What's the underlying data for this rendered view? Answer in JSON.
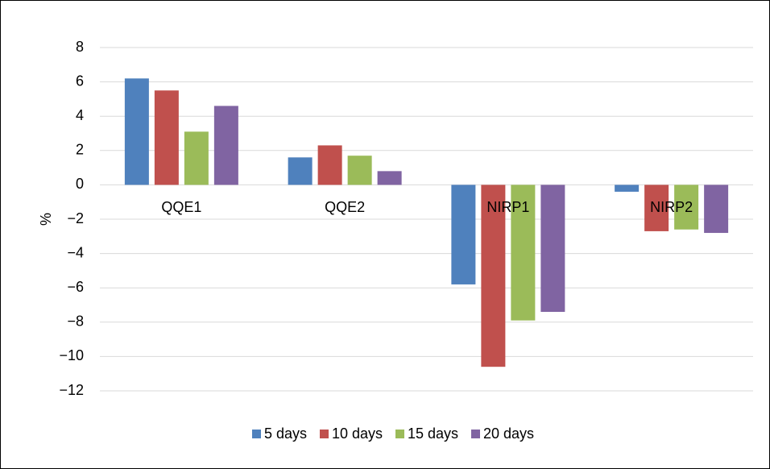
{
  "chart_data": {
    "type": "bar",
    "y_label": "%",
    "categories": [
      "QQE1",
      "QQE2",
      "NIRP1",
      "NIRP2"
    ],
    "series": [
      {
        "name": "5 days",
        "color": "#4f81bd",
        "values": [
          6.2,
          1.6,
          -5.8,
          -0.4
        ]
      },
      {
        "name": "10 days",
        "color": "#c0504d",
        "values": [
          5.5,
          2.3,
          -10.6,
          -2.7
        ]
      },
      {
        "name": "15 days",
        "color": "#9bbb59",
        "values": [
          3.1,
          1.7,
          -7.9,
          -2.6
        ]
      },
      {
        "name": "20 days",
        "color": "#8064a2",
        "values": [
          4.6,
          0.8,
          -7.4,
          -2.8
        ]
      }
    ],
    "ylim": [
      -12,
      8
    ],
    "yticks": [
      8,
      6,
      4,
      2,
      0,
      {
        "value": -2,
        "label": "−2"
      },
      {
        "value": -4,
        "label": "−4"
      },
      {
        "value": -6,
        "label": "−6"
      },
      {
        "value": -8,
        "label": "−8"
      },
      {
        "value": -10,
        "label": "−10"
      },
      {
        "value": -12,
        "label": "−12"
      }
    ],
    "grid": true,
    "legend": "bottom"
  }
}
